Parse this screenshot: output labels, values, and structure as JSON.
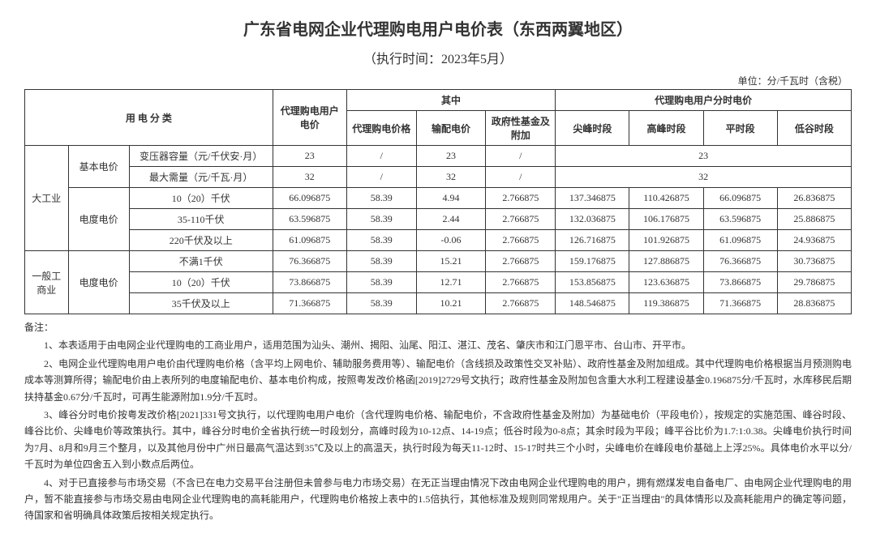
{
  "title": "广东省电网企业代理购电用户电价表（东西两翼地区）",
  "subtitle": "（执行时间：2023年5月）",
  "unit": "单位：分/千瓦时（含税）",
  "headers": {
    "category": "用 电 分 类",
    "main_price": "代理购电用户电价",
    "breakdown": "其中",
    "bd_price": "代理购电价格",
    "bd_trans": "输配电价",
    "bd_fund": "政府性基金及附加",
    "tod": "代理购电用户分时电价",
    "tod_sharp": "尖峰时段",
    "tod_peak": "高峰时段",
    "tod_flat": "平时段",
    "tod_valley": "低谷时段"
  },
  "big_industry": {
    "label": "大工业",
    "basic_label": "基本电价",
    "transformer_label": "变压器容量（元/千伏安·月）",
    "transformer": {
      "main": "23",
      "bd1": "/",
      "bd2": "23",
      "bd3": "/",
      "tod_merge": "23"
    },
    "demand_label": "最大需量（元/千瓦·月）",
    "demand": {
      "main": "32",
      "bd1": "/",
      "bd2": "32",
      "bd3": "/",
      "tod_merge": "32"
    },
    "energy_label": "电度电价",
    "rows": [
      {
        "level": "10（20）千伏",
        "main": "66.096875",
        "bd1": "58.39",
        "bd2": "4.94",
        "bd3": "2.766875",
        "t1": "137.346875",
        "t2": "110.426875",
        "t3": "66.096875",
        "t4": "26.836875"
      },
      {
        "level": "35-110千伏",
        "main": "63.596875",
        "bd1": "58.39",
        "bd2": "2.44",
        "bd3": "2.766875",
        "t1": "132.036875",
        "t2": "106.176875",
        "t3": "63.596875",
        "t4": "25.886875"
      },
      {
        "level": "220千伏及以上",
        "main": "61.096875",
        "bd1": "58.39",
        "bd2": "-0.06",
        "bd3": "2.766875",
        "t1": "126.716875",
        "t2": "101.926875",
        "t3": "61.096875",
        "t4": "24.936875"
      }
    ]
  },
  "general_commerce": {
    "label": "一般工商业",
    "energy_label": "电度电价",
    "rows": [
      {
        "level": "不满1千伏",
        "main": "76.366875",
        "bd1": "58.39",
        "bd2": "15.21",
        "bd3": "2.766875",
        "t1": "159.176875",
        "t2": "127.886875",
        "t3": "76.366875",
        "t4": "30.736875"
      },
      {
        "level": "10（20）千伏",
        "main": "73.866875",
        "bd1": "58.39",
        "bd2": "12.71",
        "bd3": "2.766875",
        "t1": "153.856875",
        "t2": "123.636875",
        "t3": "73.866875",
        "t4": "29.786875"
      },
      {
        "level": "35千伏及以上",
        "main": "71.366875",
        "bd1": "58.39",
        "bd2": "10.21",
        "bd3": "2.766875",
        "t1": "148.546875",
        "t2": "119.386875",
        "t3": "71.366875",
        "t4": "28.836875"
      }
    ]
  },
  "notes_title": "备注：",
  "notes": [
    "1、本表适用于由电网企业代理购电的工商业用户，适用范围为汕头、潮州、揭阳、汕尾、阳江、湛江、茂名、肇庆市和江门恩平市、台山市、开平市。",
    "2、电网企业代理购电用户电价由代理购电价格（含平均上网电价、辅助服务费用等）、输配电价（含线损及政策性交叉补贴）、政府性基金及附加组成。其中代理购电价格根据当月预测购电成本等测算所得；输配电价由上表所列的电度输配电价、基本电价构成，按照粤发改价格函[2019]2729号文执行；政府性基金及附加包含重大水利工程建设基金0.196875分/千瓦时，水库移民后期扶持基金0.67分/千瓦时，可再生能源附加1.9分/千瓦时。",
    "3、峰谷分时电价按粤发改价格[2021]331号文执行，以代理购电用户电价（含代理购电价格、输配电价，不含政府性基金及附加）为基础电价（平段电价），按规定的实施范围、峰谷时段、峰谷比价、尖峰电价等政策执行。其中，峰谷分时电价全省执行统一时段划分，高峰时段为10-12点、14-19点；低谷时段为0-8点；其余时段为平段；峰平谷比价为1.7:1:0.38。尖峰电价执行时间为7月、8月和9月三个整月，以及其他月份中广州日最高气温达到35℃及以上的高温天，执行时段为每天11-12时、15-17时共三个小时，尖峰电价在峰段电价基础上上浮25%。具体电价水平以分/千瓦时为单位四舍五入到小数点后两位。",
    "4、对于已直接参与市场交易（不含已在电力交易平台注册但未曾参与电力市场交易）在无正当理由情况下改由电网企业代理购电的用户，拥有燃煤发电自备电厂、由电网企业代理购电的用户，暂不能直接参与市场交易由电网企业代理购电的高耗能用户，代理购电价格按上表中的1.5倍执行，其他标准及规则同常规用户。关于\"正当理由\"的具体情形以及高耗能用户的确定等问题，待国家和省明确具体政策后按相关规定执行。"
  ]
}
